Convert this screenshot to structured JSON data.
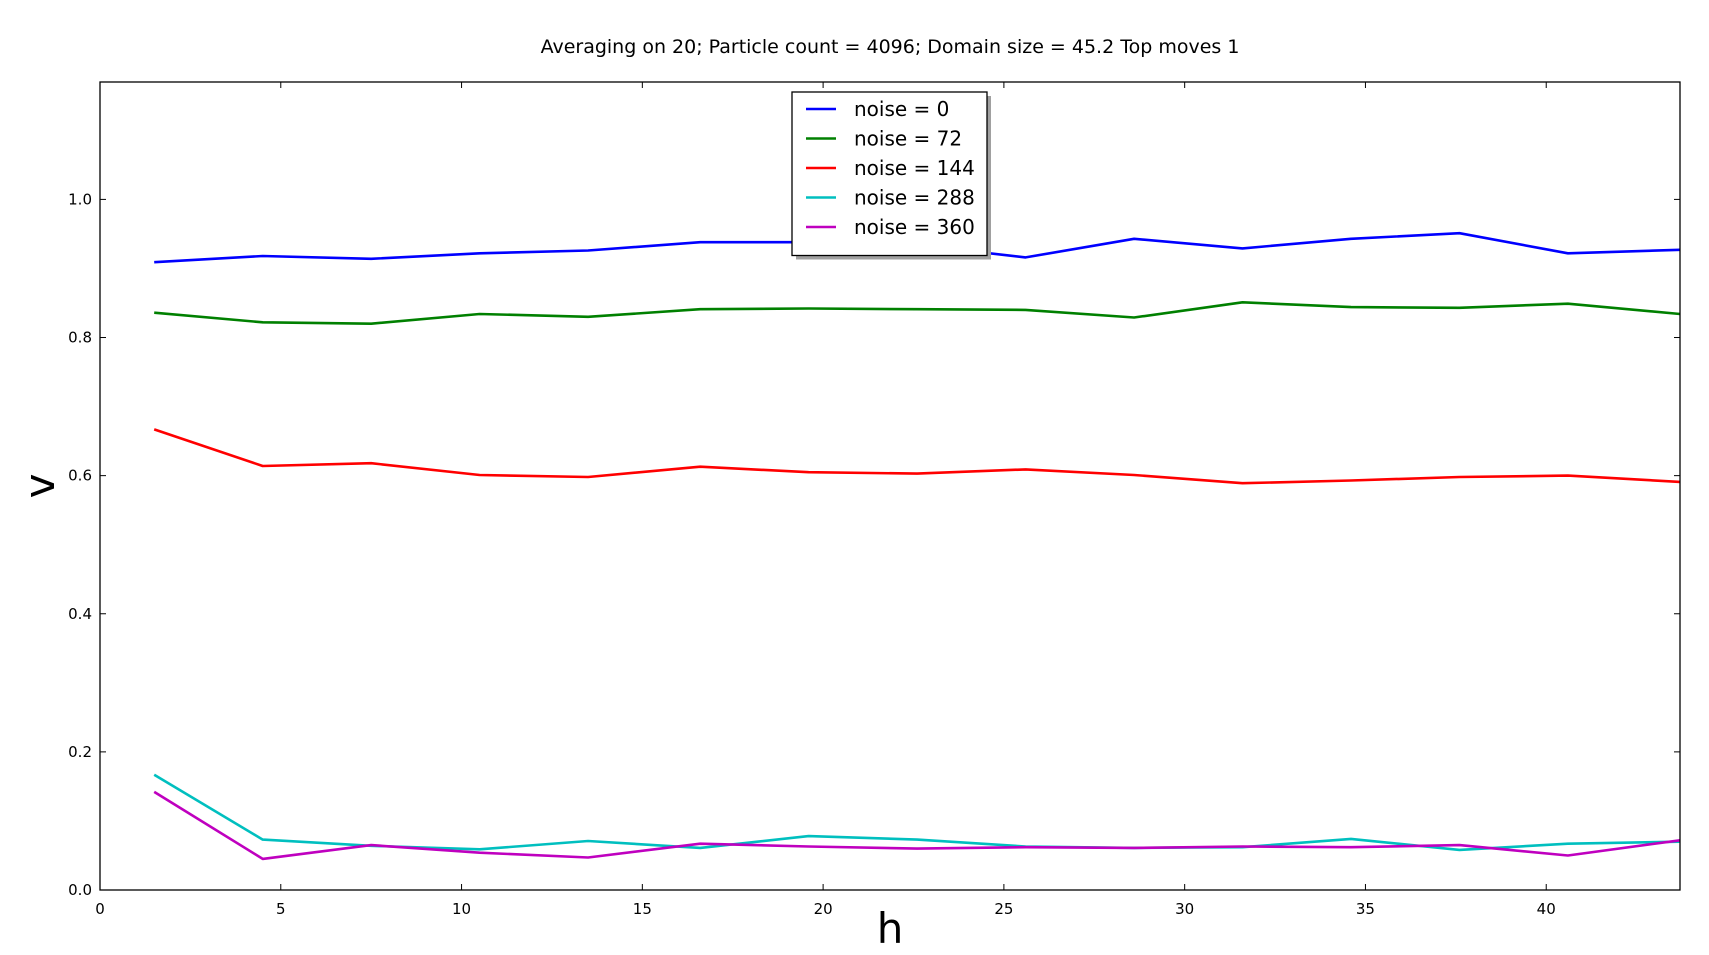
{
  "chart_data": {
    "type": "line",
    "title": "Averaging on 20; Particle count = 4096; Domain size = 45.2 Top moves 1",
    "xlabel": "h",
    "ylabel": "v",
    "xlim": [
      0,
      43.7
    ],
    "ylim": [
      0,
      1.17
    ],
    "xticks": [
      0,
      5,
      10,
      15,
      20,
      25,
      30,
      35,
      40
    ],
    "yticks": [
      0.0,
      0.2,
      0.4,
      0.6,
      0.8,
      1.0
    ],
    "grid": false,
    "legend_position": "top-center",
    "x": [
      1.5,
      4.5,
      7.5,
      10.5,
      13.5,
      16.6,
      19.6,
      22.6,
      25.6,
      28.6,
      31.6,
      34.6,
      37.6,
      40.6,
      43.7
    ],
    "series": [
      {
        "name": "noise = 0",
        "color": "#0000ff",
        "values": [
          0.909,
          0.918,
          0.914,
          0.922,
          0.926,
          0.938,
          0.938,
          0.934,
          0.916,
          0.943,
          0.929,
          0.943,
          0.951,
          0.922,
          0.927
        ]
      },
      {
        "name": "noise = 72",
        "color": "#008000",
        "values": [
          0.836,
          0.822,
          0.82,
          0.834,
          0.83,
          0.841,
          0.842,
          0.841,
          0.84,
          0.829,
          0.851,
          0.844,
          0.843,
          0.849,
          0.834
        ]
      },
      {
        "name": "noise = 144",
        "color": "#ff0000",
        "values": [
          0.667,
          0.614,
          0.618,
          0.601,
          0.598,
          0.613,
          0.605,
          0.603,
          0.609,
          0.601,
          0.589,
          0.593,
          0.598,
          0.6,
          0.591
        ]
      },
      {
        "name": "noise = 288",
        "color": "#00bfbf",
        "values": [
          0.167,
          0.073,
          0.064,
          0.059,
          0.071,
          0.061,
          0.078,
          0.073,
          0.063,
          0.061,
          0.062,
          0.074,
          0.058,
          0.067,
          0.07
        ]
      },
      {
        "name": "noise = 360",
        "color": "#bf00bf",
        "values": [
          0.142,
          0.045,
          0.065,
          0.054,
          0.047,
          0.067,
          0.063,
          0.06,
          0.062,
          0.061,
          0.063,
          0.062,
          0.065,
          0.05,
          0.072
        ]
      }
    ]
  }
}
